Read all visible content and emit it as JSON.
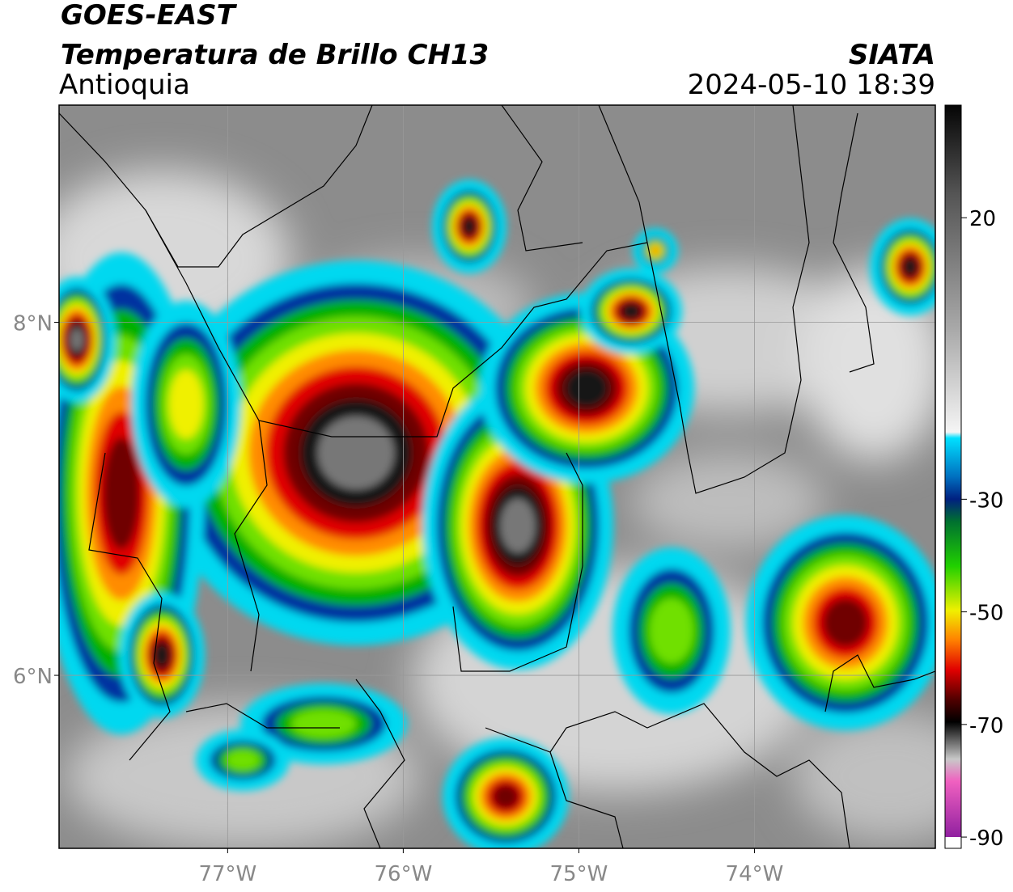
{
  "header": {
    "title": "GOES-EAST",
    "subtitle": "Temperatura de Brillo CH13",
    "region": "Antioquia",
    "source": "SIATA",
    "datetime": "2024-05-10 18:39"
  },
  "map": {
    "xlim": [
      -77.96,
      -72.97
    ],
    "ylim": [
      5.02,
      9.23
    ],
    "xticks": [
      {
        "value": -77,
        "label": "77°W"
      },
      {
        "value": -76,
        "label": "76°W"
      },
      {
        "value": -75,
        "label": "75°W"
      },
      {
        "value": -74,
        "label": "74°W"
      }
    ],
    "yticks": [
      {
        "value": 6,
        "label": "6°N"
      },
      {
        "value": 8,
        "label": "8°N"
      }
    ],
    "grid": true
  },
  "colorbar": {
    "lim": [
      -92,
      40
    ],
    "ticks": [
      20,
      -30,
      -50,
      -70,
      -90
    ]
  }
}
